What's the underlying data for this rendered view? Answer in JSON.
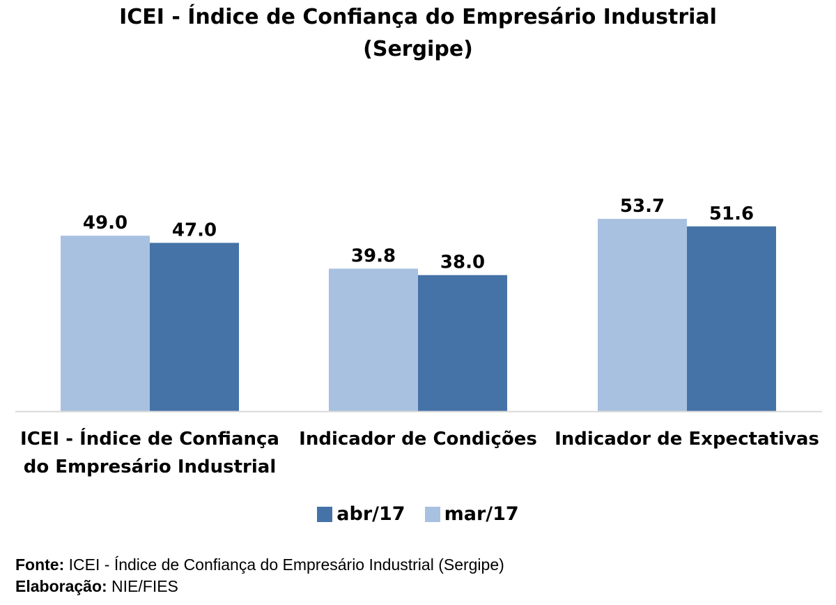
{
  "chart_data": {
    "type": "bar",
    "title": "ICEI - Índice de Confiança do Empresário Industrial",
    "subtitle": "(Sergipe)",
    "categories": [
      [
        "ICEI - Índice de Confiança",
        "do Empresário Industrial"
      ],
      [
        "Indicador de Condições"
      ],
      [
        "Indicador de Expectativas"
      ]
    ],
    "series": [
      {
        "name": "mar/17",
        "color": "#a9c1e0",
        "values": [
          49.0,
          39.8,
          53.7
        ]
      },
      {
        "name": "abr/17",
        "color": "#4573a8",
        "values": [
          47.0,
          38.0,
          51.6
        ]
      }
    ],
    "legend_order": [
      "abr/17",
      "mar/17"
    ],
    "ylim": [
      0,
      55
    ],
    "grid": false,
    "legend_position": "bottom"
  },
  "footer": {
    "source_label": "Fonte:",
    "source_text": " ICEI - Índice de Confiança do Empresário Industrial (Sergipe)",
    "credit_label": "Elaboração:",
    "credit_text": " NIE/FIES"
  }
}
